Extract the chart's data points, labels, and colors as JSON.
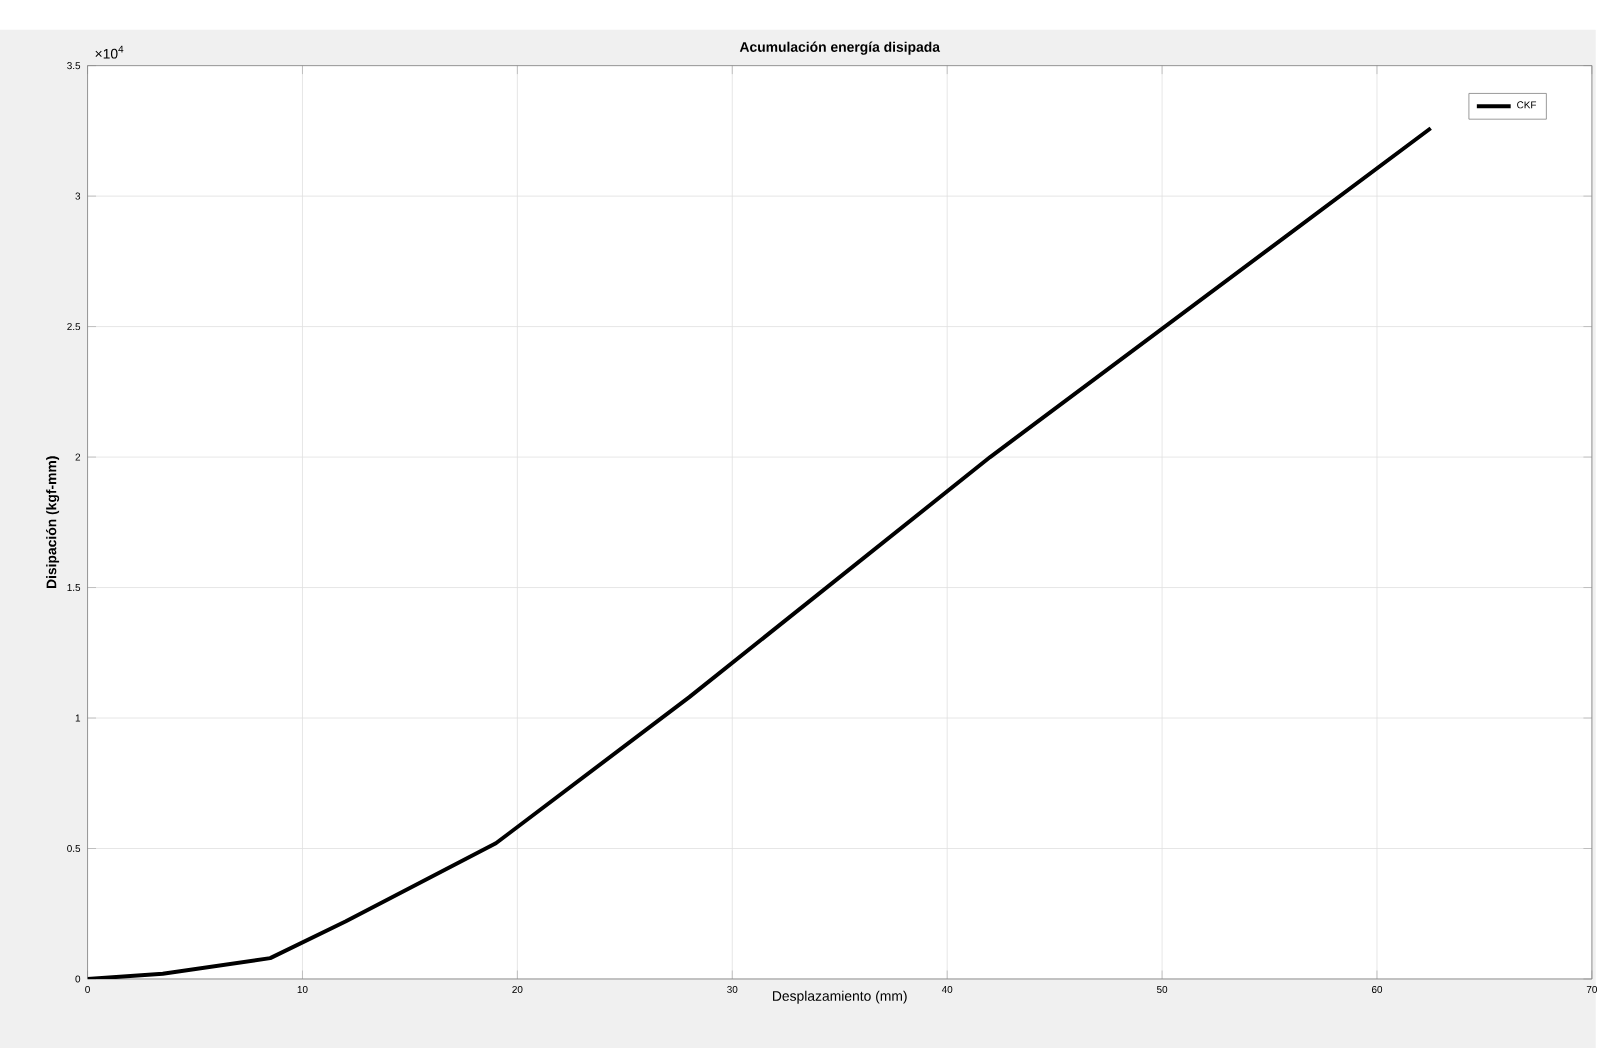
{
  "chart_data": {
    "type": "line",
    "title": "Acumulación energía disipada",
    "xlabel": "Desplazamiento (mm)",
    "ylabel": "Disipación (kgf-mm)",
    "annotations": [
      "×10$^{4}$"
    ],
    "x": [
      0,
      3.5,
      8.5,
      12,
      19,
      28,
      42,
      62.5
    ],
    "series": [
      {
        "name": "CKF",
        "color": "#000000",
        "values": [
          0,
          0.02,
          0.08,
          0.22,
          0.52,
          1.08,
          2.0,
          3.26
        ]
      }
    ],
    "xlim": [
      0,
      70
    ],
    "xticks": [
      0,
      10,
      20,
      30,
      40,
      50,
      60,
      70
    ],
    "ylim": [
      0,
      3.5
    ],
    "yticks": [
      0,
      0.5,
      1,
      1.5,
      2,
      2.5,
      3,
      3.5
    ],
    "grid": true,
    "legend": "top right",
    "marker": "none",
    "line_style": "solid"
  }
}
